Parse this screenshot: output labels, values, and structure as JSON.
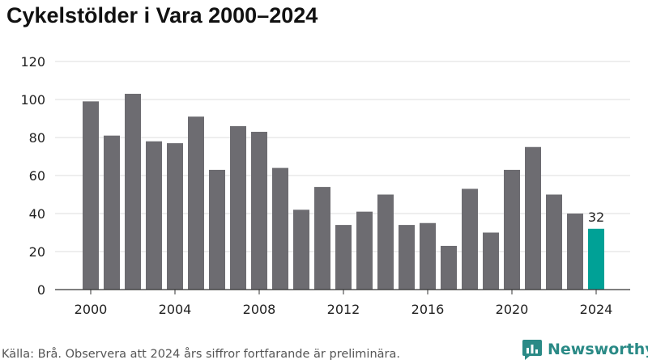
{
  "chart_data": {
    "type": "bar",
    "title": "Cykelstölder i Vara 2000–2024",
    "xlabel": "",
    "ylabel": "",
    "ylim": [
      0,
      120
    ],
    "yticks": [
      0,
      20,
      40,
      60,
      80,
      100,
      120
    ],
    "xticks": [
      2000,
      2004,
      2008,
      2012,
      2016,
      2020,
      2024
    ],
    "categories": [
      2000,
      2001,
      2002,
      2003,
      2004,
      2005,
      2006,
      2007,
      2008,
      2009,
      2010,
      2011,
      2012,
      2013,
      2014,
      2015,
      2016,
      2017,
      2018,
      2019,
      2020,
      2021,
      2022,
      2023,
      2024
    ],
    "values": [
      99,
      81,
      103,
      78,
      77,
      91,
      63,
      86,
      83,
      64,
      42,
      54,
      34,
      41,
      50,
      34,
      35,
      23,
      53,
      30,
      63,
      75,
      50,
      40,
      32
    ],
    "highlight_index": 24,
    "highlight_label": "32",
    "bar_color": "#6d6c71",
    "highlight_color": "#00a196"
  },
  "source": "Källa: Brå. Observera att 2024 års siffror fortfarande är preliminära.",
  "brand": {
    "name": "Newsworthy",
    "color": "#2a8a86",
    "icon": "newsworthy-logo-icon"
  }
}
